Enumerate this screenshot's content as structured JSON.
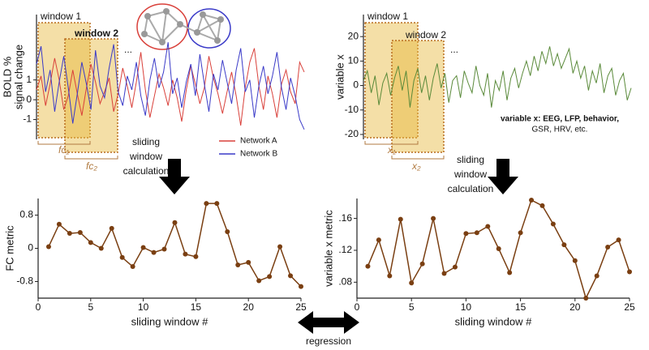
{
  "chart_data": [
    {
      "type": "line",
      "ylabel": [
        "BOLD %",
        "signal change"
      ],
      "ylim": [
        -2,
        4.3
      ],
      "yticks": [
        1,
        0,
        -1
      ],
      "legend": "lower right",
      "series": [
        {
          "name": "Network A",
          "color": "#d9403a",
          "values": [
            0.5,
            1.2,
            -0.3,
            0.8,
            2.1,
            1.0,
            -0.5,
            0.2,
            1.5,
            0.3,
            -0.8,
            0.6,
            1.8,
            0.9,
            -0.2,
            0.4,
            1.1,
            -0.6,
            0.3,
            1.6,
            0.7,
            -0.4,
            0.9,
            2.4,
            0.5,
            -0.9,
            0.2,
            1.3,
            0.6,
            -0.3,
            1.0,
            0.1,
            -1.1,
            0.5,
            1.7,
            0.8,
            -0.2,
            0.6,
            2.2,
            1.1,
            0.3,
            -0.7,
            0.4,
            1.4,
            0.2,
            -1.3,
            0.6,
            1.9,
            2.6,
            0.7,
            -0.5,
            1.2,
            0.3,
            -0.9,
            0.8,
            1.5,
            0.4,
            -0.2,
            1.9,
            1.4
          ]
        },
        {
          "name": "Network B",
          "color": "#3a3ac8",
          "values": [
            1.8,
            2.7,
            0.4,
            1.5,
            -0.6,
            0.9,
            2.2,
            0.6,
            -1.2,
            0.3,
            1.9,
            0.8,
            -0.5,
            2.5,
            0.7,
            0.1,
            1.6,
            2.8,
            0.4,
            -0.3,
            1.2,
            0.5,
            1.9,
            0.2,
            -0.8,
            1.0,
            2.1,
            0.6,
            1.4,
            2.9,
            0.3,
            1.1,
            -0.4,
            0.9,
            1.8,
            0.2,
            2.3,
            0.8,
            -0.6,
            1.3,
            0.5,
            2.0,
            0.9,
            -0.2,
            1.5,
            2.6,
            0.4,
            1.0,
            -0.9,
            0.7,
            1.7,
            0.3,
            1.2,
            2.4,
            0.6,
            -0.5,
            1.1,
            0.2,
            -1.0,
            -1.5
          ]
        }
      ],
      "windows": [
        "window 1",
        "window 2"
      ],
      "window_labels": [
        "fc₁",
        "fc₂"
      ],
      "ellipsis": "..."
    },
    {
      "type": "line",
      "ylabel": [
        "variable x"
      ],
      "ylim": [
        -22,
        29
      ],
      "yticks": [
        20,
        10,
        0,
        -10,
        -20
      ],
      "series": [
        {
          "name": "variable x",
          "color": "#5a8a3a",
          "values": [
            2,
            6,
            -3,
            4,
            -8,
            1,
            5,
            -4,
            3,
            8,
            -2,
            6,
            -9,
            2,
            7,
            -3,
            4,
            -6,
            3,
            9,
            -1,
            5,
            -7,
            2,
            4,
            -5,
            6,
            1,
            -3,
            8,
            0,
            -4,
            5,
            -9,
            2,
            -2,
            6,
            -6,
            3,
            7,
            -1,
            5,
            10,
            4,
            12,
            6,
            14,
            9,
            16,
            8,
            13,
            7,
            11,
            15,
            5,
            10,
            3,
            8,
            -2,
            6,
            1,
            9,
            -3,
            4,
            7,
            -4,
            2,
            5,
            -6,
            -1
          ]
        }
      ],
      "windows": [
        "window 1",
        "window 2"
      ],
      "window_labels": [
        "x₁",
        "x₂"
      ],
      "ellipsis": "...",
      "annotation": [
        "variable x: EEG, LFP, behavior,",
        "GSR, HRV, etc."
      ]
    },
    {
      "type": "line-markers",
      "ylabel": [
        "FC metric"
      ],
      "xlabel": "sliding window #",
      "color": "#7a3f12",
      "x": [
        1,
        2,
        3,
        4,
        5,
        6,
        7,
        8,
        9,
        10,
        11,
        12,
        13,
        14,
        15,
        16,
        17,
        18,
        19,
        20,
        21,
        22,
        23,
        24,
        25
      ],
      "values": [
        0.04,
        0.58,
        0.36,
        0.38,
        0.14,
        0.0,
        0.48,
        -0.22,
        -0.44,
        0.02,
        -0.1,
        -0.02,
        0.62,
        -0.14,
        -0.2,
        1.08,
        1.08,
        0.4,
        -0.4,
        -0.34,
        -0.78,
        -0.68,
        0.04,
        -0.66,
        -0.92
      ],
      "xlim": [
        0,
        25
      ],
      "xticks": [
        0,
        5,
        10,
        15,
        20,
        25
      ],
      "ylim": [
        -1.2,
        1.2
      ],
      "yticks": [
        0.8,
        0,
        -0.8
      ]
    },
    {
      "type": "line-markers",
      "ylabel": [
        "variable x metric"
      ],
      "xlabel": "sliding window #",
      "color": "#7a3f12",
      "x": [
        1,
        2,
        3,
        4,
        5,
        6,
        7,
        8,
        9,
        10,
        11,
        12,
        13,
        14,
        15,
        16,
        17,
        18,
        19,
        20,
        21,
        22,
        23,
        24,
        25
      ],
      "values": [
        0.1,
        0.133,
        0.088,
        0.159,
        0.079,
        0.103,
        0.16,
        0.091,
        0.099,
        0.141,
        0.142,
        0.15,
        0.122,
        0.092,
        0.142,
        0.183,
        0.176,
        0.153,
        0.127,
        0.107,
        0.06,
        0.088,
        0.124,
        0.133,
        0.093
      ],
      "xlim": [
        0,
        25
      ],
      "xticks": [
        0,
        5,
        10,
        15,
        20,
        25
      ],
      "ylim": [
        0.06,
        0.185
      ],
      "yticks": [
        {
          "value": 0.16,
          "label": ".16"
        },
        {
          "value": 0.12,
          "label": ".12"
        },
        {
          "value": 0.08,
          "label": ".08"
        }
      ]
    }
  ],
  "figure": {
    "calc_label": [
      "sliding",
      "window",
      "calculation"
    ],
    "regression": "regression"
  }
}
